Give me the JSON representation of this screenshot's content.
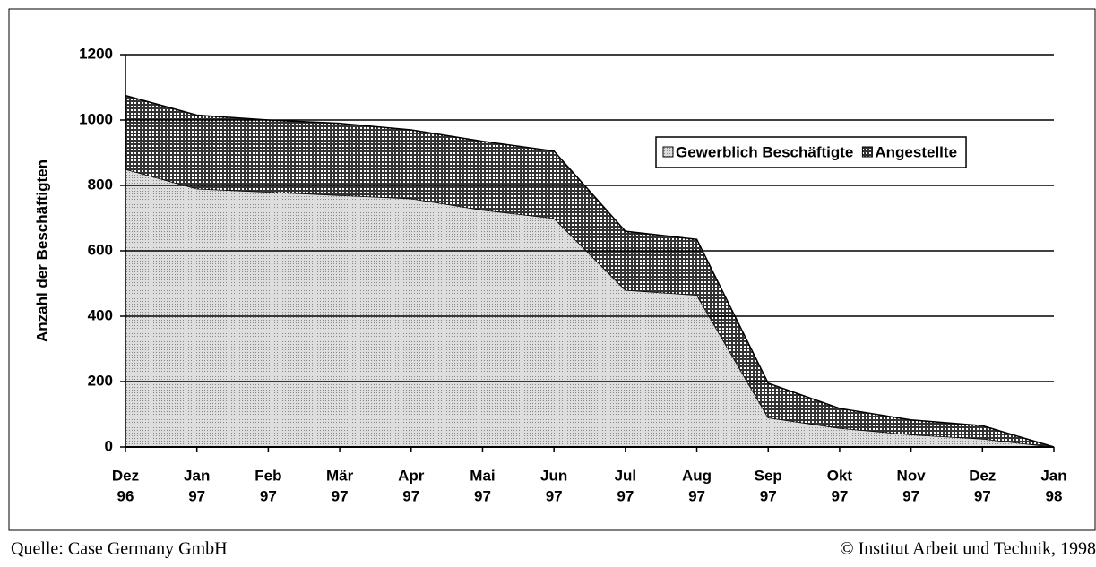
{
  "chart_data": {
    "type": "stacked_area",
    "ylabel": "Anzahl der Beschäftigten",
    "categories": [
      [
        "Dez",
        "96"
      ],
      [
        "Jan",
        "97"
      ],
      [
        "Feb",
        "97"
      ],
      [
        "Mär",
        "97"
      ],
      [
        "Apr",
        "97"
      ],
      [
        "Mai",
        "97"
      ],
      [
        "Jun",
        "97"
      ],
      [
        "Jul",
        "97"
      ],
      [
        "Aug",
        "97"
      ],
      [
        "Sep",
        "97"
      ],
      [
        "Okt",
        "97"
      ],
      [
        "Nov",
        "97"
      ],
      [
        "Dez",
        "97"
      ],
      [
        "Jan",
        "98"
      ]
    ],
    "series": [
      {
        "name": "Gewerblich Beschäftigte",
        "color": "#c8c8c8",
        "values": [
          850,
          790,
          780,
          770,
          760,
          725,
          700,
          480,
          465,
          90,
          58,
          38,
          25,
          0
        ]
      },
      {
        "name": "Angestellte",
        "color": "#333333",
        "values": [
          225,
          225,
          220,
          220,
          210,
          210,
          205,
          180,
          170,
          105,
          60,
          45,
          40,
          0
        ]
      }
    ],
    "ylim": [
      0,
      1200
    ],
    "yticks": [
      0,
      200,
      400,
      600,
      800,
      1000,
      1200
    ],
    "grid": true,
    "legend": "upper right",
    "footer": {
      "source": "Quelle: Case Germany GmbH",
      "copyright": "© Institut Arbeit und Technik, 1998"
    }
  }
}
